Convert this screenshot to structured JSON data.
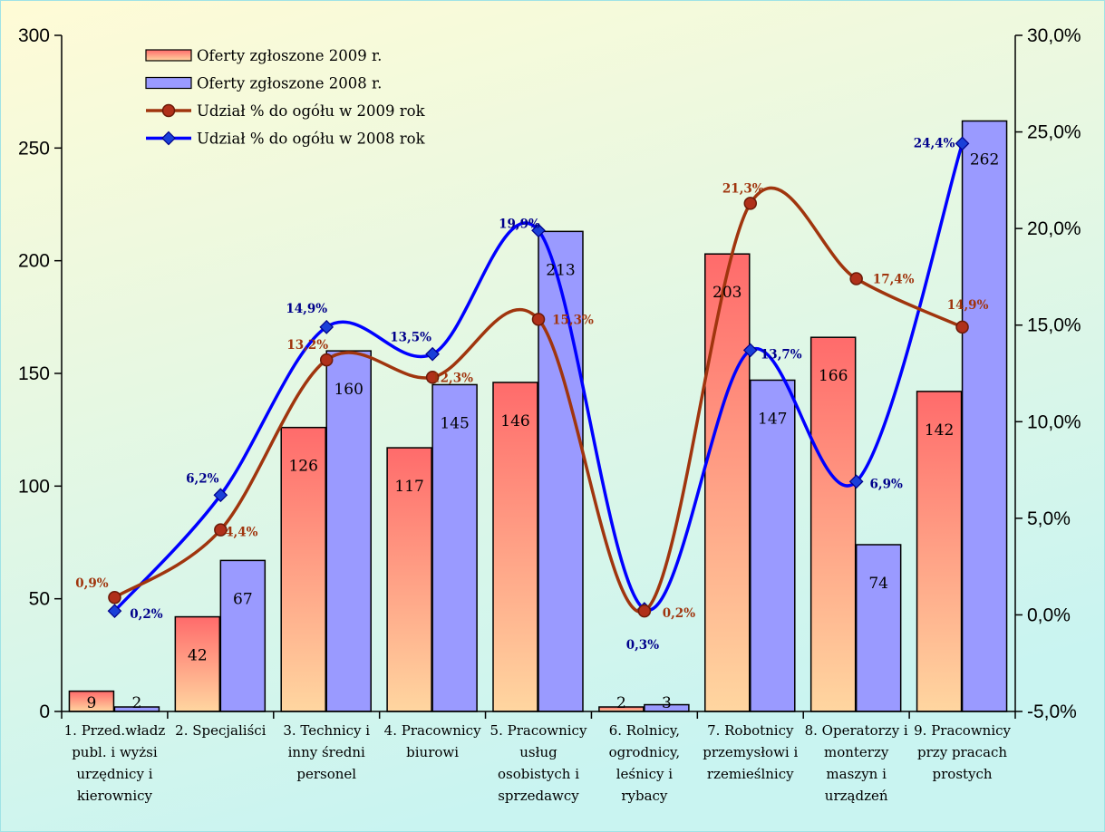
{
  "chart_data": {
    "type": "bar",
    "title": "",
    "xlabel": "",
    "ylabel": "",
    "ylim": [
      0,
      300
    ],
    "y2lim": [
      -5.0,
      30.0
    ],
    "y_ticks": [
      "0",
      "50",
      "100",
      "150",
      "200",
      "250",
      "300"
    ],
    "y2_ticks": [
      "-5,0%",
      "0,0%",
      "5,0%",
      "10,0%",
      "15,0%",
      "20,0%",
      "25,0%",
      "30,0%"
    ],
    "categories": [
      [
        "1. Przed.władz",
        "publ. i wyżsi",
        "urzędnicy i",
        "kierownicy"
      ],
      [
        "2. Specjaliści"
      ],
      [
        "3. Technicy i",
        "inny średni",
        "personel"
      ],
      [
        "4. Pracownicy",
        "biurowi"
      ],
      [
        "5. Pracownicy",
        "usług",
        "osobistych i",
        "sprzedawcy"
      ],
      [
        "6. Rolnicy,",
        "ogrodnicy,",
        "leśnicy i",
        "rybacy"
      ],
      [
        "7. Robotnicy",
        "przemysłowi i",
        "rzemieślnicy"
      ],
      [
        "8. Operatorzy i",
        "monterzy",
        "maszyn i",
        "urządzeń"
      ],
      [
        "9. Pracownicy",
        "przy pracach",
        "prostych"
      ]
    ],
    "legend_position": "top-left",
    "grid": false,
    "background": "gradient light yellow to light cyan",
    "series": [
      {
        "name": "Oferty zgłoszone 2009 r.",
        "kind": "bar",
        "axis": "left",
        "values": [
          9,
          42,
          126,
          117,
          146,
          2,
          203,
          166,
          142
        ],
        "labels": [
          "9",
          "42",
          "126",
          "117",
          "146",
          "2",
          "203",
          "166",
          "142"
        ],
        "color_top": "#ff6b6b",
        "color_bottom": "#ffd39e"
      },
      {
        "name": "Oferty zgłoszone 2008 r.",
        "kind": "bar",
        "axis": "left",
        "values": [
          2,
          67,
          160,
          145,
          213,
          3,
          147,
          74,
          262
        ],
        "labels": [
          "2",
          "67",
          "160",
          "145",
          "213",
          "3",
          "147",
          "74",
          "262"
        ],
        "color": "#9999ff"
      },
      {
        "name": "Udział % do ogółu w 2009 rok",
        "kind": "line",
        "axis": "right",
        "marker": "circle",
        "values": [
          0.9,
          4.4,
          13.2,
          12.3,
          15.3,
          0.2,
          21.3,
          17.4,
          14.9
        ],
        "labels": [
          "0,9%",
          "4,4%",
          "13,2%",
          "12,3%",
          "15,3%",
          "0,2%",
          "21,3%",
          "17,4%",
          "14,9%"
        ],
        "color": "#a0350e"
      },
      {
        "name": "Udział % do ogółu w 2008 rok",
        "kind": "line",
        "axis": "right",
        "marker": "diamond",
        "values": [
          0.2,
          6.2,
          14.9,
          13.5,
          19.9,
          0.3,
          13.7,
          6.9,
          24.4
        ],
        "labels": [
          "0,2%",
          "6,2%",
          "14,9%",
          "13,5%",
          "19,9%",
          "0,3%",
          "13,7%",
          "6,9%",
          "24,4%"
        ],
        "color": "#0000ff"
      }
    ]
  }
}
